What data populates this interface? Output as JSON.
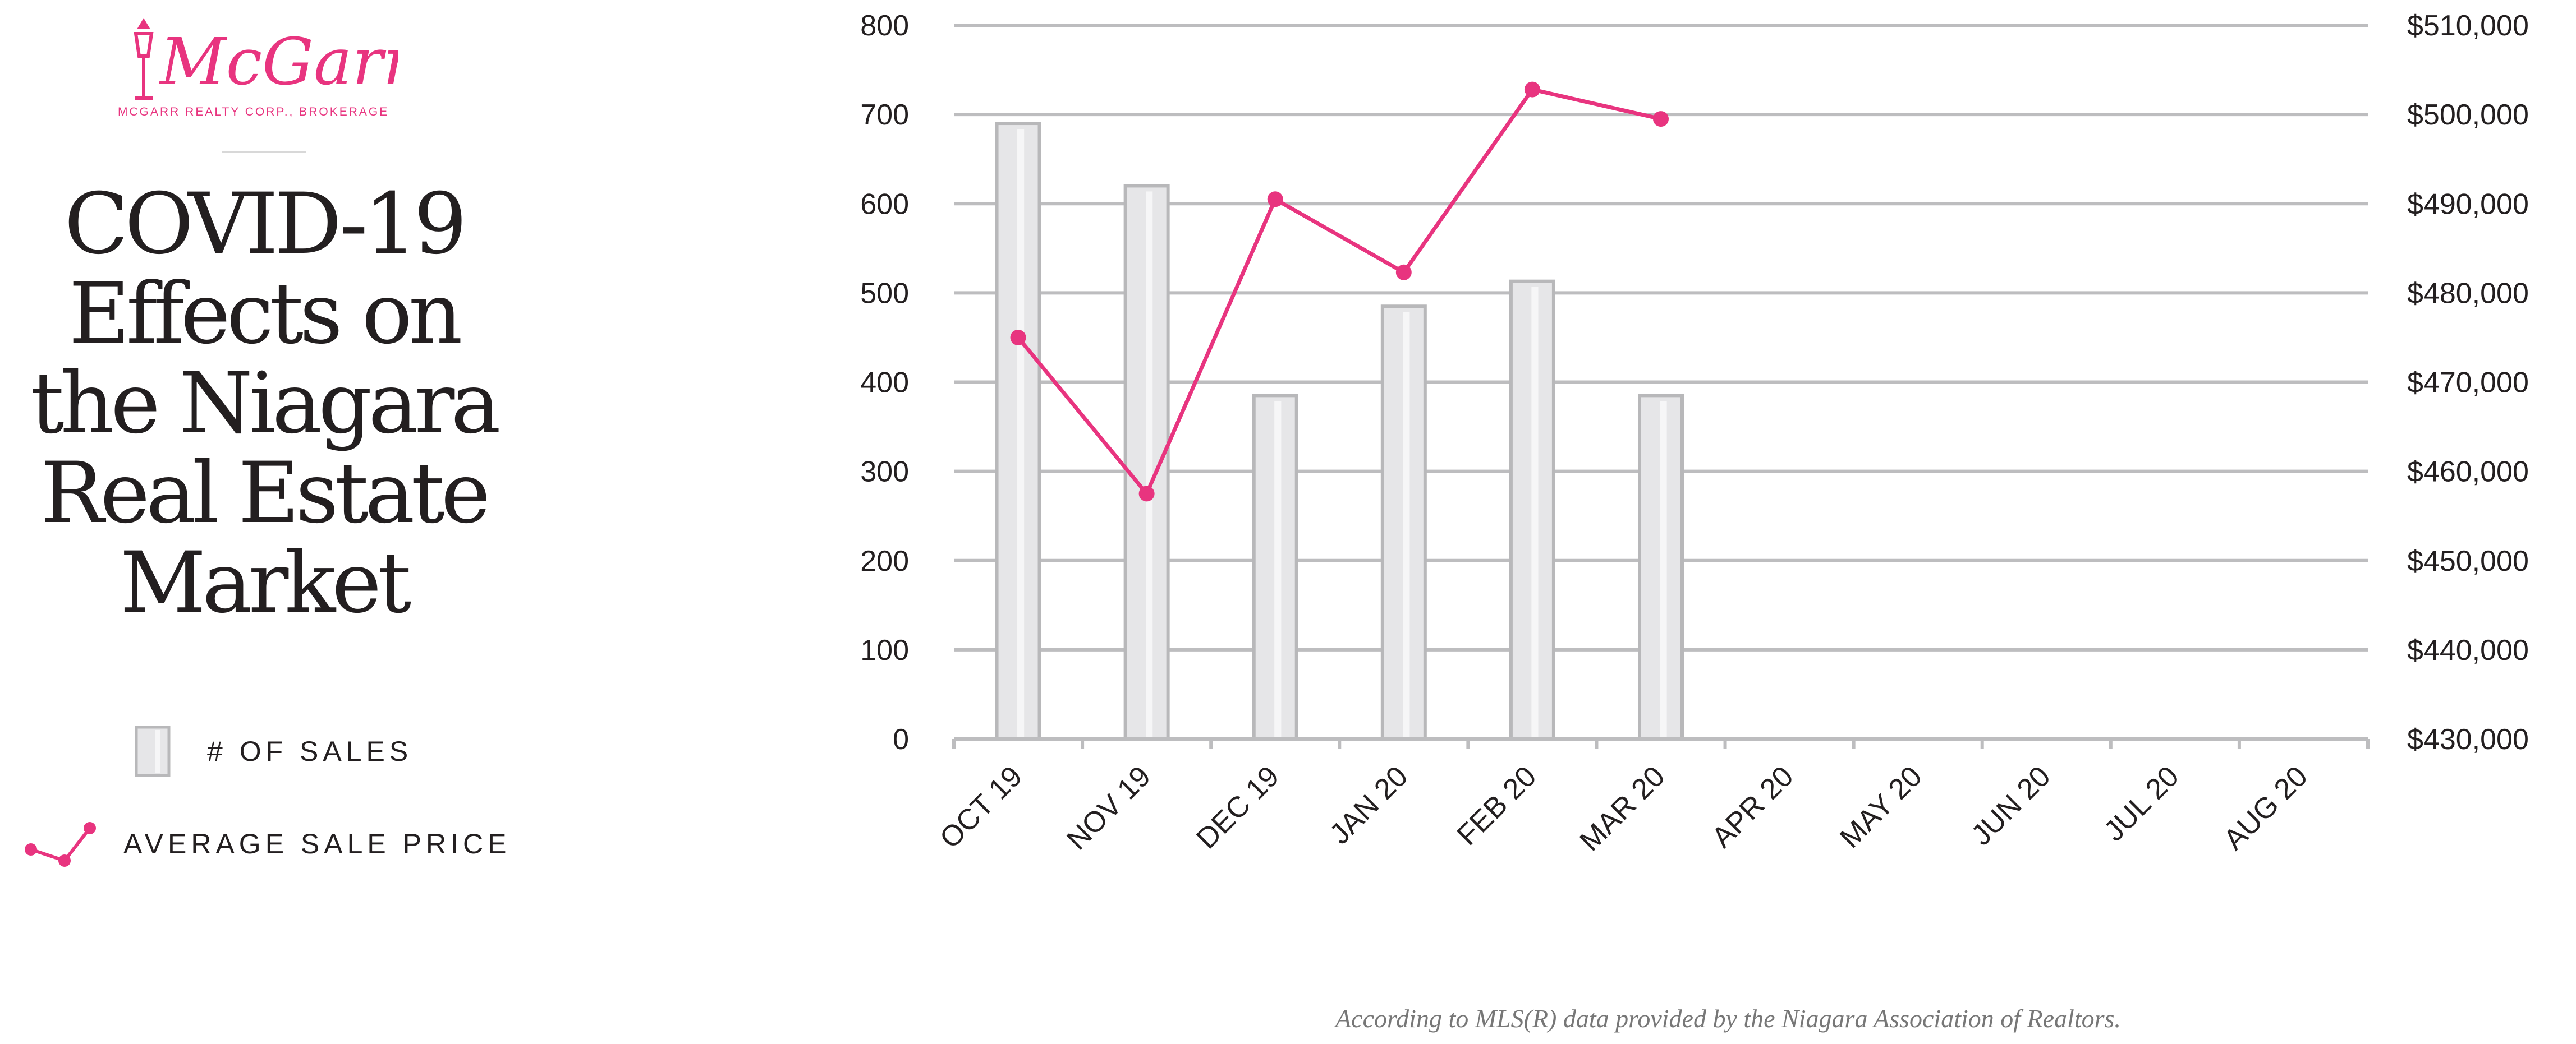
{
  "brand": {
    "name": "McGarr",
    "tagline": "MCGARR REALTY CORP., BROKERAGE",
    "color": "#e8347f"
  },
  "title_lines": [
    "COVID-19",
    "Effects on",
    "the Niagara",
    "Real Estate",
    "Market"
  ],
  "legend": {
    "sales_label": "# OF SALES",
    "price_label": "AVERAGE SALE PRICE"
  },
  "source_note": "According to MLS(R) data provided by the Niagara Association of Realtors.",
  "colors": {
    "bar_fill": "#e6e6e8",
    "bar_stroke": "#b8b8ba",
    "bar_highlight": "#f6f6f7",
    "line": "#e8347f",
    "grid": "#bdbdbf",
    "text": "#231f20"
  },
  "chart_data": {
    "type": "bar",
    "categories": [
      "OCT 19",
      "NOV 19",
      "DEC 19",
      "JAN 20",
      "FEB 20",
      "MAR 20",
      "APR 20",
      "MAY 20",
      "JUN 20",
      "JUL 20",
      "AUG 20"
    ],
    "series": [
      {
        "name": "# OF SALES",
        "type": "bar",
        "axis": "left",
        "values": [
          690,
          620,
          385,
          485,
          513,
          385,
          null,
          null,
          null,
          null,
          null
        ]
      },
      {
        "name": "AVERAGE SALE PRICE",
        "type": "line",
        "axis": "right",
        "values": [
          475000,
          457500,
          490500,
          482300,
          502800,
          499500,
          null,
          null,
          null,
          null,
          null
        ]
      }
    ],
    "y_left": {
      "min": 0,
      "max": 800,
      "ticks": [
        0,
        100,
        200,
        300,
        400,
        500,
        600,
        700,
        800
      ]
    },
    "y_right": {
      "min": 430000,
      "max": 510000,
      "ticks": [
        430000,
        440000,
        450000,
        460000,
        470000,
        480000,
        490000,
        500000,
        510000
      ],
      "tick_labels": [
        "$430,000",
        "$440,000",
        "$450,000",
        "$460,000",
        "$470,000",
        "$480,000",
        "$490,000",
        "$500,000",
        "$510,000"
      ]
    },
    "grid": true,
    "legend_position": "left"
  }
}
